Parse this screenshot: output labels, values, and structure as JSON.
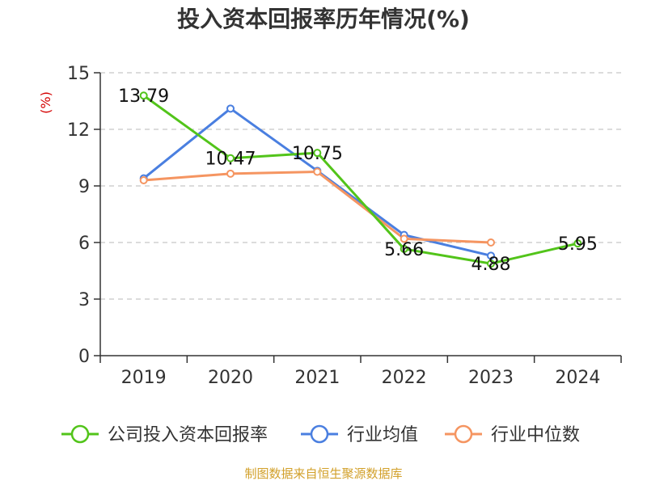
{
  "chart_data": {
    "type": "line",
    "title": "投入资本回报率历年情况(%)",
    "ylabel": "(%)",
    "xlabel": "",
    "categories": [
      "2019",
      "2020",
      "2021",
      "2022",
      "2023",
      "2024"
    ],
    "ylim": [
      0,
      15
    ],
    "yticks": [
      0,
      3,
      6,
      9,
      12,
      15
    ],
    "grid": "horizontal-dashed",
    "legend_position": "bottom",
    "series": [
      {
        "name": "公司投入资本回报率",
        "color": "#52c41a",
        "values": [
          13.79,
          10.47,
          10.75,
          5.66,
          4.88,
          5.95
        ],
        "labels": [
          "13.79",
          "10.47",
          "10.75",
          "5.66",
          "4.88",
          "5.95"
        ]
      },
      {
        "name": "行业均值",
        "color": "#4a7fe0",
        "values": [
          9.4,
          13.1,
          9.8,
          6.4,
          5.3,
          null
        ]
      },
      {
        "name": "行业中位数",
        "color": "#f59561",
        "values": [
          9.3,
          9.65,
          9.75,
          6.2,
          6.0,
          null
        ]
      }
    ],
    "ylabel_color": "#d40000"
  },
  "source": {
    "text": "制图数据来自恒生聚源数据库",
    "color": "#d2a02a"
  }
}
